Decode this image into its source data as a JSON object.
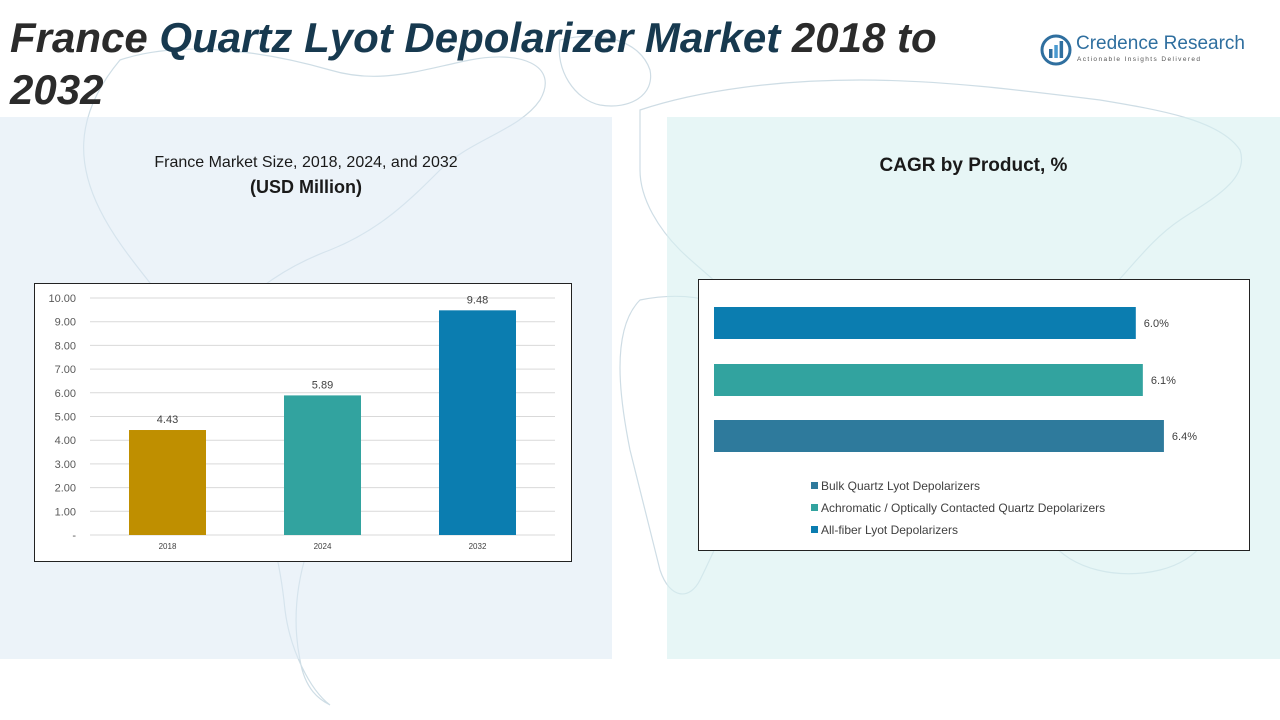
{
  "header": {
    "title_part1": "France ",
    "title_part2": "Quartz Lyot Depolarizer Market",
    "title_part3": " 2018 to 2032"
  },
  "logo": {
    "name": "Credence Research",
    "tagline": "Actionable Insights Delivered"
  },
  "left_panel": {
    "title_line1": "France Market Size, 2018, 2024, and 2032",
    "title_line2": "(USD Million)"
  },
  "right_panel": {
    "title": "CAGR by Product, %"
  },
  "chart_data": [
    {
      "type": "bar",
      "categories": [
        "2018",
        "2024",
        "2032"
      ],
      "values": [
        4.43,
        5.89,
        9.48
      ],
      "value_labels": [
        "4.43",
        "5.89",
        "9.48"
      ],
      "colors": [
        "#bf8f00",
        "#32a39f",
        "#0b7db0"
      ],
      "ylim": [
        0,
        10
      ],
      "yticks": [
        0,
        1,
        2,
        3,
        4,
        5,
        6,
        7,
        8,
        9,
        10
      ],
      "ytick_labels": [
        "-",
        "1.00",
        "2.00",
        "3.00",
        "4.00",
        "5.00",
        "6.00",
        "7.00",
        "8.00",
        "9.00",
        "10.00"
      ],
      "grid": true
    },
    {
      "type": "bar",
      "orientation": "horizontal",
      "series": [
        {
          "name": "Bulk Quartz Lyot Depolarizers",
          "value": 6.4,
          "label": "6.4%",
          "color": "#2e7a9c"
        },
        {
          "name": "Achromatic / Optically Contacted Quartz Depolarizers",
          "value": 6.1,
          "label": "6.1%",
          "color": "#32a39f"
        },
        {
          "name": "All-fiber Lyot Depolarizers",
          "value": 6.0,
          "label": "6.0%",
          "color": "#0b7db0"
        }
      ],
      "legend_position": "bottom",
      "grid": false
    }
  ]
}
